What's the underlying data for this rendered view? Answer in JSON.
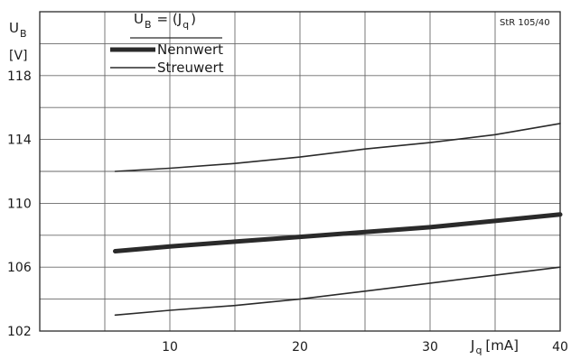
{
  "chart_data": {
    "type": "line",
    "title": "",
    "formula": {
      "main": "U",
      "sub": "B",
      "eq": "= (J",
      "sub2": "q",
      "close": ")"
    },
    "ylabel": {
      "main": "U",
      "sub": "B",
      "unit": "[V]"
    },
    "xlabel": {
      "main": "J",
      "sub": "q",
      "unit": "[mA]"
    },
    "code_label": "StR 105/40",
    "xlim": [
      0,
      40
    ],
    "ylim": [
      102,
      122
    ],
    "x_ticks": [
      10,
      20,
      30,
      40
    ],
    "y_ticks": [
      102,
      106,
      110,
      114,
      118
    ],
    "grid": true,
    "legend_placement": "top-left",
    "series": [
      {
        "name": "Nennwert",
        "style": "thick",
        "color": "#2a2a2a",
        "x": [
          5.8,
          10,
          15,
          20,
          25,
          30,
          35,
          40
        ],
        "y": [
          107.0,
          107.3,
          107.6,
          107.9,
          108.2,
          108.5,
          108.9,
          109.3
        ]
      },
      {
        "name": "Streuwert",
        "style": "thin",
        "color": "#2a2a2a",
        "x": [
          5.8,
          10,
          15,
          20,
          25,
          30,
          35,
          40
        ],
        "y": [
          112.0,
          112.2,
          112.5,
          112.9,
          113.4,
          113.8,
          114.3,
          115.0
        ]
      },
      {
        "name": "",
        "style": "thin",
        "color": "#2a2a2a",
        "x": [
          5.8,
          10,
          15,
          20,
          25,
          30,
          35,
          40
        ],
        "y": [
          103.0,
          103.3,
          103.6,
          104.0,
          104.5,
          105.0,
          105.5,
          106.0
        ]
      }
    ]
  }
}
